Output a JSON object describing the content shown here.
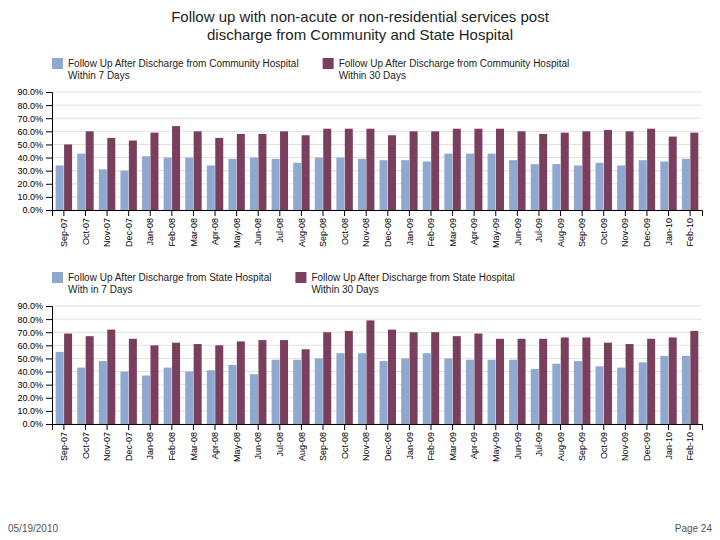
{
  "chart_data": [
    {
      "type": "bar",
      "title": "Follow up with non-acute or non-residential services post\ndischarge from Community and State Hospital",
      "categories": [
        "Sep-07",
        "Oct-07",
        "Nov-07",
        "Dec-07",
        "Jan-08",
        "Feb-08",
        "Mar-08",
        "Apr-08",
        "May-08",
        "Jun-08",
        "Jul-08",
        "Aug-08",
        "Sep-08",
        "Oct-08",
        "Nov-08",
        "Dec-08",
        "Jan-09",
        "Feb-09",
        "Mar-09",
        "Apr-09",
        "May-09",
        "Jun-09",
        "Jul-09",
        "Aug-09",
        "Sep-09",
        "Oct-09",
        "Nov-09",
        "Dec-09",
        "Jan-10",
        "Feb-10"
      ],
      "series": [
        {
          "name": "Follow Up After Discharge from Community Hospital\nWithin 7 Days",
          "color": "#8fa8d0",
          "values": [
            34,
            43,
            31,
            30,
            41,
            40,
            40,
            34,
            39,
            40,
            39,
            36,
            40,
            40,
            39,
            38,
            38,
            37,
            43,
            43,
            43,
            38,
            35,
            35,
            34,
            36,
            34,
            38,
            37,
            39
          ]
        },
        {
          "name": "Follow Up After Discharge from Community Hospital\nWithin 30 Days",
          "color": "#7b3f5e",
          "values": [
            50,
            60,
            55,
            53,
            59,
            64,
            60,
            55,
            58,
            58,
            60,
            57,
            62,
            62,
            62,
            57,
            60,
            60,
            62,
            62,
            62,
            60,
            58,
            59,
            60,
            61,
            60,
            62,
            56,
            59
          ]
        }
      ],
      "ylim": [
        0,
        90
      ],
      "yticks": [
        {
          "value": 0,
          "label": "0.0%"
        },
        {
          "value": 10,
          "label": "10.0%"
        },
        {
          "value": 20,
          "label": "20.0%"
        },
        {
          "value": 30,
          "label": "30.0%"
        },
        {
          "value": 40,
          "label": "40.0%"
        },
        {
          "value": 50,
          "label": "50.0%"
        },
        {
          "value": 60,
          "label": "60.0%"
        },
        {
          "value": 70,
          "label": "70.0%"
        },
        {
          "value": 80,
          "label": "80.0%"
        },
        {
          "value": 90,
          "label": "90.0%"
        }
      ],
      "grid": true,
      "legend": "top"
    },
    {
      "type": "bar",
      "categories": [
        "Sep-07",
        "Oct-07",
        "Nov-07",
        "Dec-07",
        "Jan-08",
        "Feb-08",
        "Mar-08",
        "Apr-08",
        "May-08",
        "Jun-08",
        "Jul-08",
        "Aug-08",
        "Sep-08",
        "Oct-08",
        "Nov-08",
        "Dec-08",
        "Jan-09",
        "Feb-09",
        "Mar-09",
        "Apr-09",
        "May-09",
        "Jun-09",
        "Jul-09",
        "Aug-09",
        "Sep-09",
        "Oct-09",
        "Nov-09",
        "Dec-09",
        "Jan-10",
        "Feb-10"
      ],
      "series": [
        {
          "name": "Follow Up After Discharge from State Hospital\nWith in 7 Days",
          "color": "#8fa8d0",
          "values": [
            55,
            43,
            48,
            40,
            37,
            43,
            40,
            41,
            45,
            38,
            49,
            49,
            50,
            54,
            54,
            48,
            50,
            54,
            50,
            49,
            49,
            49,
            42,
            46,
            48,
            44,
            43,
            47,
            52,
            52
          ]
        },
        {
          "name": "Follow Up After Discharge from State Hospital\nWithin 30 Days",
          "color": "#7b3f5e",
          "values": [
            69,
            67,
            72,
            65,
            60,
            62,
            61,
            60,
            63,
            64,
            64,
            57,
            70,
            71,
            79,
            72,
            70,
            70,
            67,
            69,
            65,
            65,
            65,
            66,
            66,
            62,
            61,
            65,
            66,
            71
          ]
        }
      ],
      "ylim": [
        0,
        90
      ],
      "yticks": [
        {
          "value": 0,
          "label": "0.0%"
        },
        {
          "value": 10,
          "label": "10.0%"
        },
        {
          "value": 20,
          "label": "20.0%"
        },
        {
          "value": 30,
          "label": "30.0%"
        },
        {
          "value": 40,
          "label": "40.0%"
        },
        {
          "value": 50,
          "label": "50.0%"
        },
        {
          "value": 60,
          "label": "60.0%"
        },
        {
          "value": 70,
          "label": "70.0%"
        },
        {
          "value": 80,
          "label": "80.0%"
        },
        {
          "value": 90,
          "label": "90.0%"
        }
      ],
      "grid": true,
      "legend": "top",
      "annotations": [
        "05/19/2010",
        "Page 24"
      ]
    }
  ]
}
